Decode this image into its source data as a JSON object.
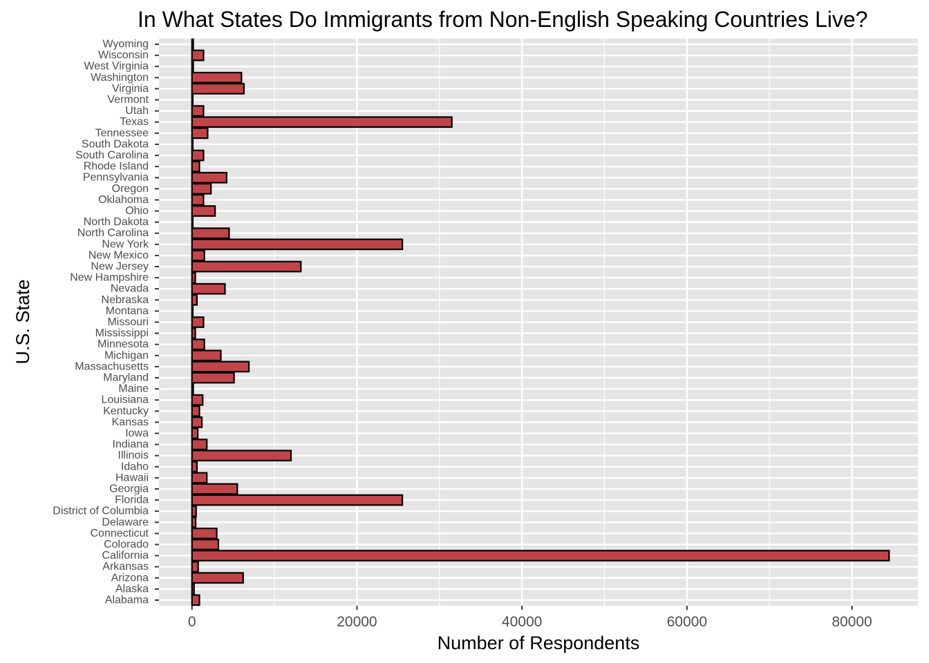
{
  "chart_data": {
    "type": "bar",
    "orientation": "horizontal",
    "title": "In What States Do Immigrants from Non-English Speaking Countries Live?",
    "xlabel": "Number of Respondents",
    "ylabel": "U.S. State",
    "xlim": [
      -4000,
      88000
    ],
    "x_ticks": [
      0,
      20000,
      40000,
      60000,
      80000
    ],
    "x_tick_labels": [
      "0",
      "20000",
      "40000",
      "60000",
      "80000"
    ],
    "grid": true,
    "legend": "none",
    "colors": {
      "bar_fill": "#c0454a",
      "bar_outline": "#000000",
      "panel": "#e5e5e5",
      "gridline": "#ffffff"
    },
    "categories": [
      "Alabama",
      "Alaska",
      "Arizona",
      "Arkansas",
      "California",
      "Colorado",
      "Connecticut",
      "Delaware",
      "District of Columbia",
      "Florida",
      "Georgia",
      "Hawaii",
      "Idaho",
      "Illinois",
      "Indiana",
      "Iowa",
      "Kansas",
      "Kentucky",
      "Louisiana",
      "Maine",
      "Maryland",
      "Massachusetts",
      "Michigan",
      "Minnesota",
      "Mississippi",
      "Missouri",
      "Montana",
      "Nebraska",
      "Nevada",
      "New Hampshire",
      "New Jersey",
      "New Mexico",
      "New York",
      "North Carolina",
      "North Dakota",
      "Ohio",
      "Oklahoma",
      "Oregon",
      "Pennsylvania",
      "Rhode Island",
      "South Carolina",
      "South Dakota",
      "Tennessee",
      "Texas",
      "Utah",
      "Vermont",
      "Virginia",
      "Washington",
      "West Virginia",
      "Wisconsin",
      "Wyoming"
    ],
    "values": [
      900,
      250,
      6200,
      750,
      84500,
      3200,
      3000,
      450,
      500,
      25500,
      5500,
      1800,
      600,
      12000,
      1800,
      700,
      1200,
      900,
      1300,
      150,
      5100,
      6900,
      3500,
      1500,
      400,
      1400,
      100,
      600,
      4000,
      400,
      13200,
      1500,
      25500,
      4500,
      100,
      2800,
      1400,
      2300,
      4200,
      900,
      1400,
      100,
      1900,
      31500,
      1400,
      100,
      6300,
      6000,
      150,
      1400,
      150
    ]
  }
}
